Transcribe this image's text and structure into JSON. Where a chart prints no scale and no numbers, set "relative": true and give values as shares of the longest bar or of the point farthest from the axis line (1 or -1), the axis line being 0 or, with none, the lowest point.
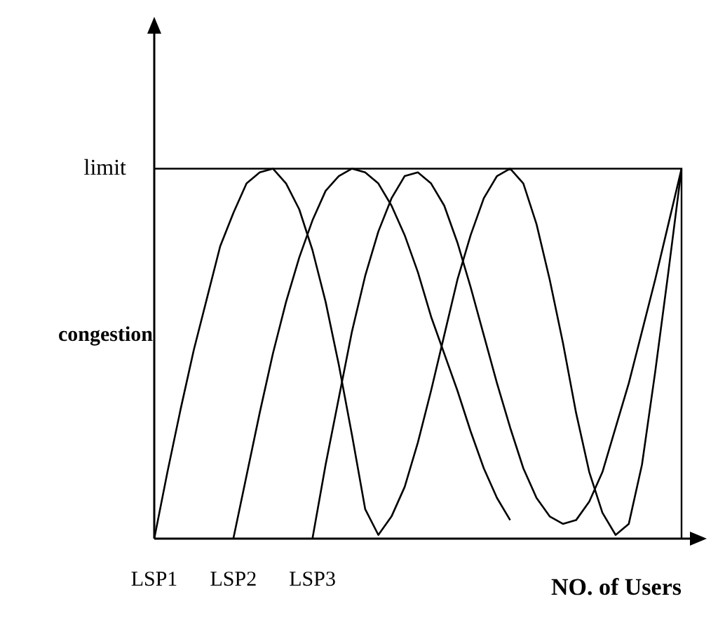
{
  "chart_data": {
    "type": "line",
    "relative": true,
    "xlabel": "NO. of Users",
    "ylabel": "congestion",
    "categories": [
      null,
      null,
      null,
      null,
      null,
      null,
      null,
      null,
      null,
      null,
      null,
      null,
      null,
      null,
      null,
      null,
      null,
      null,
      null,
      null,
      null,
      null,
      null,
      null,
      null,
      null,
      null,
      null,
      null,
      null,
      null,
      null,
      null,
      null,
      null,
      null,
      null,
      null,
      null,
      null,
      null
    ],
    "ref_lines": [
      {
        "axis": "y",
        "value": 1,
        "label": "limit",
        "color": "#000000"
      }
    ],
    "legend": false,
    "line_style": "solid",
    "series": [
      {
        "name": "LSP1",
        "color": "#000000",
        "values": [
          0,
          0.18,
          0.35,
          0.51,
          0.65,
          0.79,
          0.88,
          0.96,
          0.99,
          1,
          0.96,
          0.89,
          0.78,
          0.64,
          0.47,
          0.28,
          0.08,
          0.01,
          0.06,
          0.14,
          0.26,
          0.4,
          0.55,
          0.7,
          0.82,
          0.92,
          0.98,
          1,
          0.96,
          0.85,
          0.7,
          0.53,
          0.34,
          0.18,
          0.07,
          0.01,
          0.04,
          0.2,
          0.45,
          0.72,
          1
        ]
      },
      {
        "name": "LSP2",
        "color": "#000000",
        "values": [
          null,
          null,
          null,
          null,
          null,
          null,
          0,
          0.17,
          0.34,
          0.5,
          0.64,
          0.76,
          0.86,
          0.94,
          0.98,
          1,
          0.99,
          0.96,
          0.9,
          0.82,
          0.72,
          0.6,
          0.5,
          0.4,
          0.29,
          0.19,
          0.11,
          0.05,
          null,
          null,
          null,
          null,
          null,
          null,
          null,
          null,
          null,
          null,
          null,
          null,
          null
        ]
      },
      {
        "name": "LSP3",
        "color": "#000000",
        "values": [
          null,
          null,
          null,
          null,
          null,
          null,
          null,
          null,
          null,
          null,
          null,
          null,
          0,
          0.2,
          0.38,
          0.56,
          0.71,
          0.83,
          0.92,
          0.98,
          0.99,
          0.96,
          0.9,
          0.8,
          0.68,
          0.55,
          0.42,
          0.3,
          0.19,
          0.11,
          0.06,
          0.04,
          0.05,
          0.1,
          0.18,
          0.3,
          0.42,
          0.56,
          0.7,
          0.85,
          1
        ]
      }
    ]
  }
}
